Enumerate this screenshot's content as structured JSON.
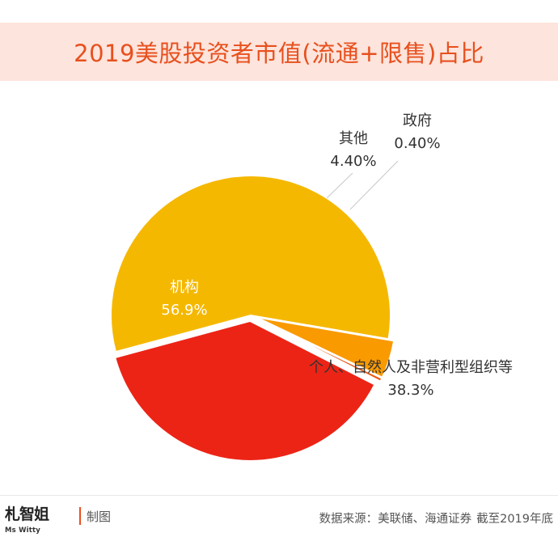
{
  "title": "2019美股投资者市值(流通+限售)占比",
  "chart_data": {
    "type": "pie",
    "title": "2019美股投资者市值(流通+限售)占比",
    "slices": [
      {
        "label": "个人、自然人及非营利型组织等",
        "value": 38.3,
        "display": "38.3%",
        "color": "#ec2416"
      },
      {
        "label": "机构",
        "value": 56.9,
        "display": "56.9%",
        "color": "#f5b800"
      },
      {
        "label": "其他",
        "value": 4.4,
        "display": "4.40%",
        "color": "#f99a00"
      },
      {
        "label": "政府",
        "value": 0.4,
        "display": "0.40%",
        "color": "#ea5a14"
      }
    ]
  },
  "footer": {
    "logo_text": "札智姐",
    "logo_sub": "Ms Witty",
    "credit": "制图",
    "source": "数据来源：美联储、海通证券",
    "source_note": "截至2019年底"
  },
  "colors": {
    "title": "#e8501e",
    "title_bg": "#fde4dc",
    "label_dark": "#333333",
    "label_light": "#ffffff"
  }
}
